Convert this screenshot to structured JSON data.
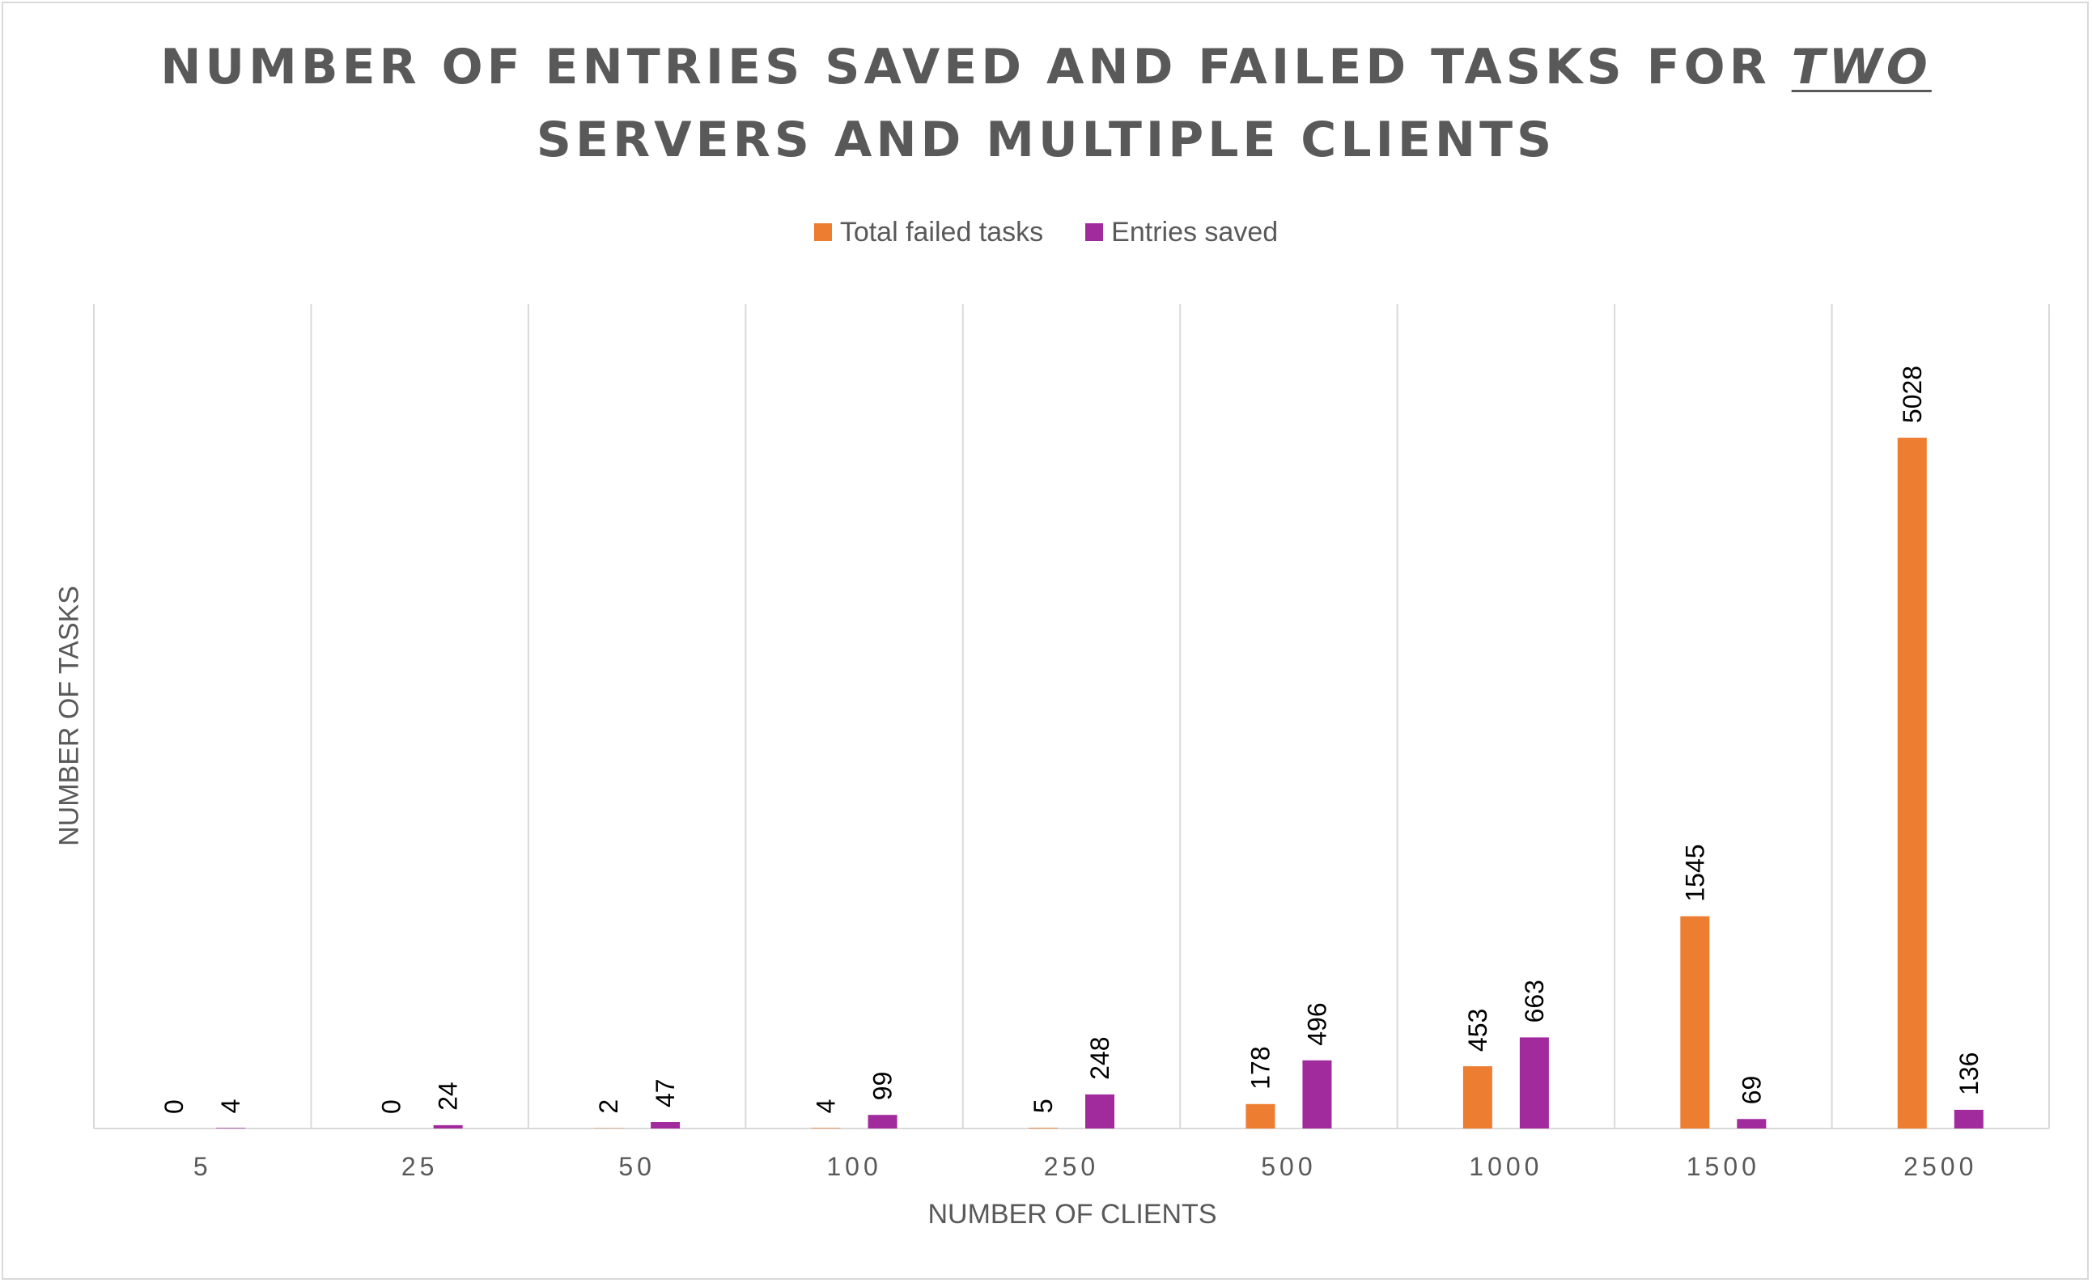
{
  "chart_data": {
    "type": "bar",
    "title_line1": "NUMBER OF ENTRIES SAVED AND FAILED TASKS FOR ",
    "title_emphasis": "TWO",
    "title_line2": "SERVERS AND MULTIPLE CLIENTS",
    "xlabel": "NUMBER OF CLIENTS",
    "ylabel": "NUMBER OF TASKS",
    "categories": [
      "5",
      "25",
      "50",
      "100",
      "250",
      "500",
      "1000",
      "1500",
      "2500"
    ],
    "series": [
      {
        "name": "Total failed tasks",
        "color": "#ED7D31",
        "values": [
          0,
          0,
          2,
          4,
          5,
          178,
          453,
          1545,
          5028
        ]
      },
      {
        "name": "Entries saved",
        "color": "#A12B9C",
        "values": [
          4,
          24,
          47,
          99,
          248,
          496,
          663,
          69,
          136
        ]
      }
    ],
    "ylim": [
      0,
      6000
    ],
    "grid": "vertical",
    "legend_position": "top",
    "data_labels": "rotated"
  }
}
